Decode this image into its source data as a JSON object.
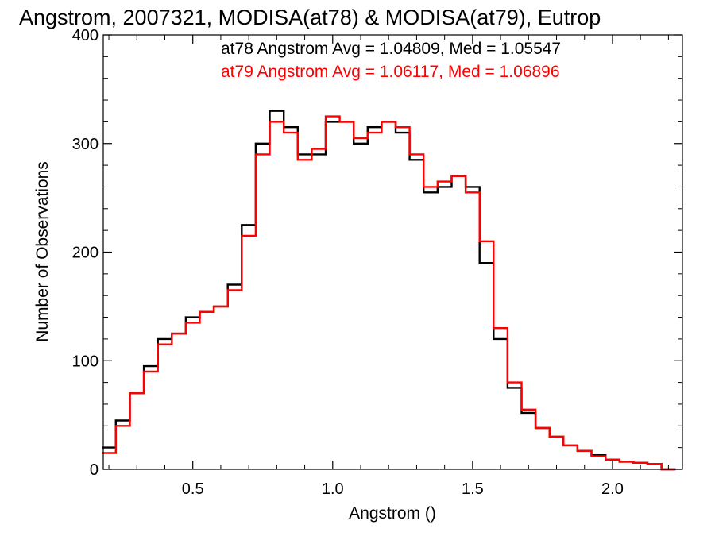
{
  "chart_data": {
    "type": "line",
    "title": "Angstrom, 2007321, MODISA(at78) & MODISA(at79), Eutrop",
    "xlabel": "Angstrom ()",
    "ylabel": "Number of Observations",
    "xlim": [
      0.18,
      2.25
    ],
    "ylim": [
      0,
      400
    ],
    "x_ticks": [
      "0.5",
      "1.0",
      "1.5",
      "2.0"
    ],
    "y_ticks": [
      "0",
      "100",
      "200",
      "300",
      "400"
    ],
    "grid": false,
    "annotations": [
      {
        "text": "at78 Angstrom Avg = 1.04809, Med = 1.05547",
        "color": "#000000"
      },
      {
        "text": "at79 Angstrom Avg = 1.06117, Med = 1.06896",
        "color": "#ff0000"
      }
    ],
    "x": [
      0.2,
      0.25,
      0.3,
      0.35,
      0.4,
      0.45,
      0.5,
      0.55,
      0.6,
      0.65,
      0.7,
      0.75,
      0.8,
      0.85,
      0.9,
      0.95,
      1.0,
      1.05,
      1.1,
      1.15,
      1.2,
      1.25,
      1.3,
      1.35,
      1.4,
      1.45,
      1.5,
      1.55,
      1.6,
      1.65,
      1.7,
      1.75,
      1.8,
      1.85,
      1.9,
      1.95,
      2.0,
      2.05,
      2.1,
      2.15,
      2.2
    ],
    "series": [
      {
        "name": "at78",
        "color": "#000000",
        "values": [
          20,
          45,
          70,
          95,
          120,
          125,
          140,
          145,
          150,
          170,
          225,
          300,
          330,
          315,
          290,
          290,
          320,
          320,
          300,
          315,
          320,
          310,
          285,
          255,
          260,
          270,
          260,
          190,
          120,
          75,
          52,
          38,
          30,
          22,
          17,
          13,
          9,
          7,
          6,
          5,
          0
        ]
      },
      {
        "name": "at79",
        "color": "#ff0000",
        "values": [
          15,
          40,
          70,
          90,
          115,
          125,
          135,
          145,
          150,
          165,
          215,
          290,
          320,
          310,
          285,
          295,
          325,
          320,
          305,
          310,
          320,
          315,
          290,
          260,
          265,
          270,
          255,
          210,
          130,
          80,
          55,
          38,
          30,
          22,
          17,
          12,
          9,
          7,
          6,
          5,
          0
        ]
      }
    ]
  }
}
